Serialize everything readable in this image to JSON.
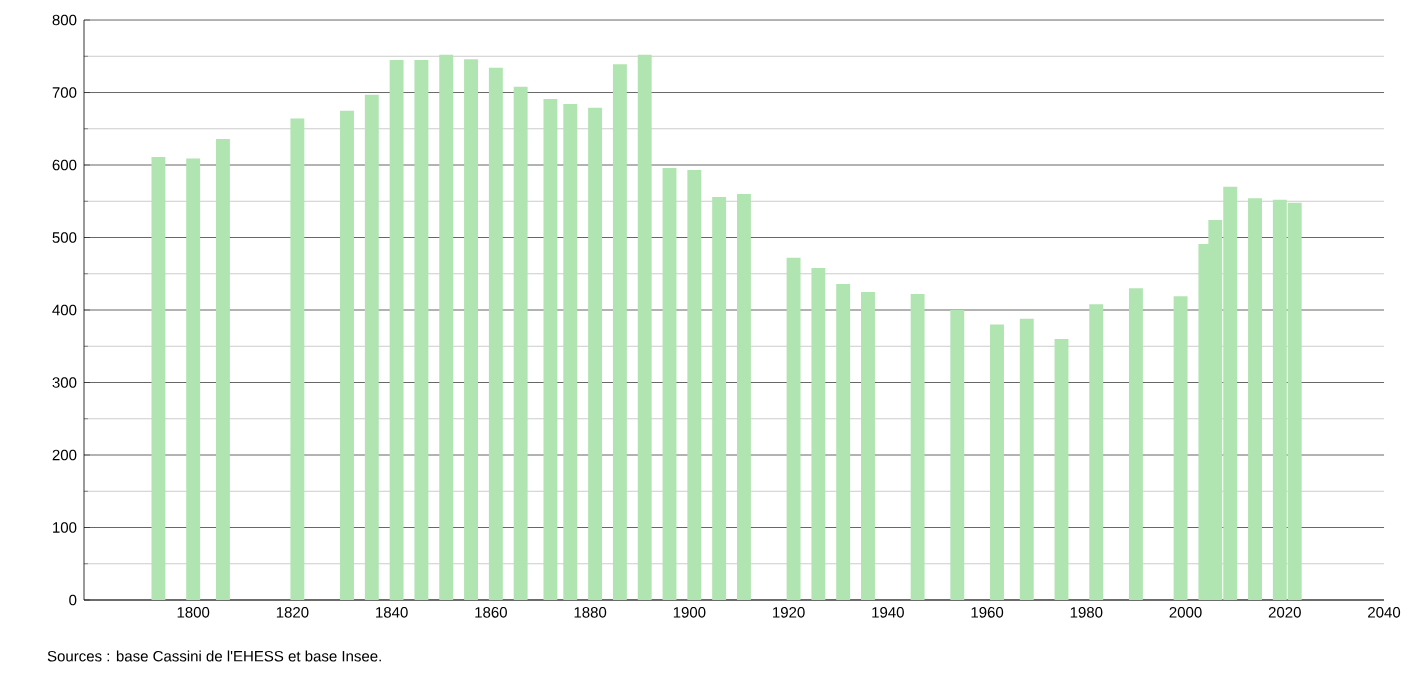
{
  "chart_data": {
    "type": "bar",
    "x": [
      1793,
      1800,
      1806,
      1821,
      1831,
      1836,
      1841,
      1846,
      1851,
      1856,
      1861,
      1866,
      1872,
      1876,
      1881,
      1886,
      1891,
      1896,
      1901,
      1906,
      1911,
      1921,
      1926,
      1931,
      1936,
      1946,
      1954,
      1962,
      1968,
      1975,
      1982,
      1990,
      1999,
      2004,
      2006,
      2009,
      2014,
      2019,
      2022
    ],
    "values": [
      611,
      609,
      636,
      664,
      675,
      697,
      745,
      745,
      752,
      746,
      734,
      708,
      691,
      684,
      679,
      739,
      752,
      596,
      593,
      556,
      560,
      472,
      458,
      436,
      425,
      422,
      400,
      380,
      388,
      360,
      408,
      430,
      419,
      491,
      524,
      570,
      554,
      552,
      548
    ],
    "color": "#b0e4b0",
    "xlim": [
      1778,
      2040
    ],
    "xticks": [
      1800,
      1820,
      1840,
      1860,
      1880,
      1900,
      1920,
      1940,
      1960,
      1980,
      2000,
      2020,
      2040
    ],
    "ylim": [
      0,
      800
    ],
    "yticks": [
      0,
      {
        "value": 50,
        "label": null
      },
      100,
      {
        "value": 150,
        "label": null
      },
      200,
      {
        "value": 250,
        "label": null
      },
      300,
      {
        "value": 350,
        "label": null
      },
      400,
      {
        "value": 450,
        "label": null
      },
      500,
      {
        "value": 550,
        "label": null
      },
      600,
      {
        "value": 650,
        "label": null
      },
      700,
      {
        "value": 750,
        "label": null
      },
      800
    ],
    "grid": "y",
    "annotations": [
      "Sources : base Cassini de l'EHESS et base Insee."
    ]
  }
}
